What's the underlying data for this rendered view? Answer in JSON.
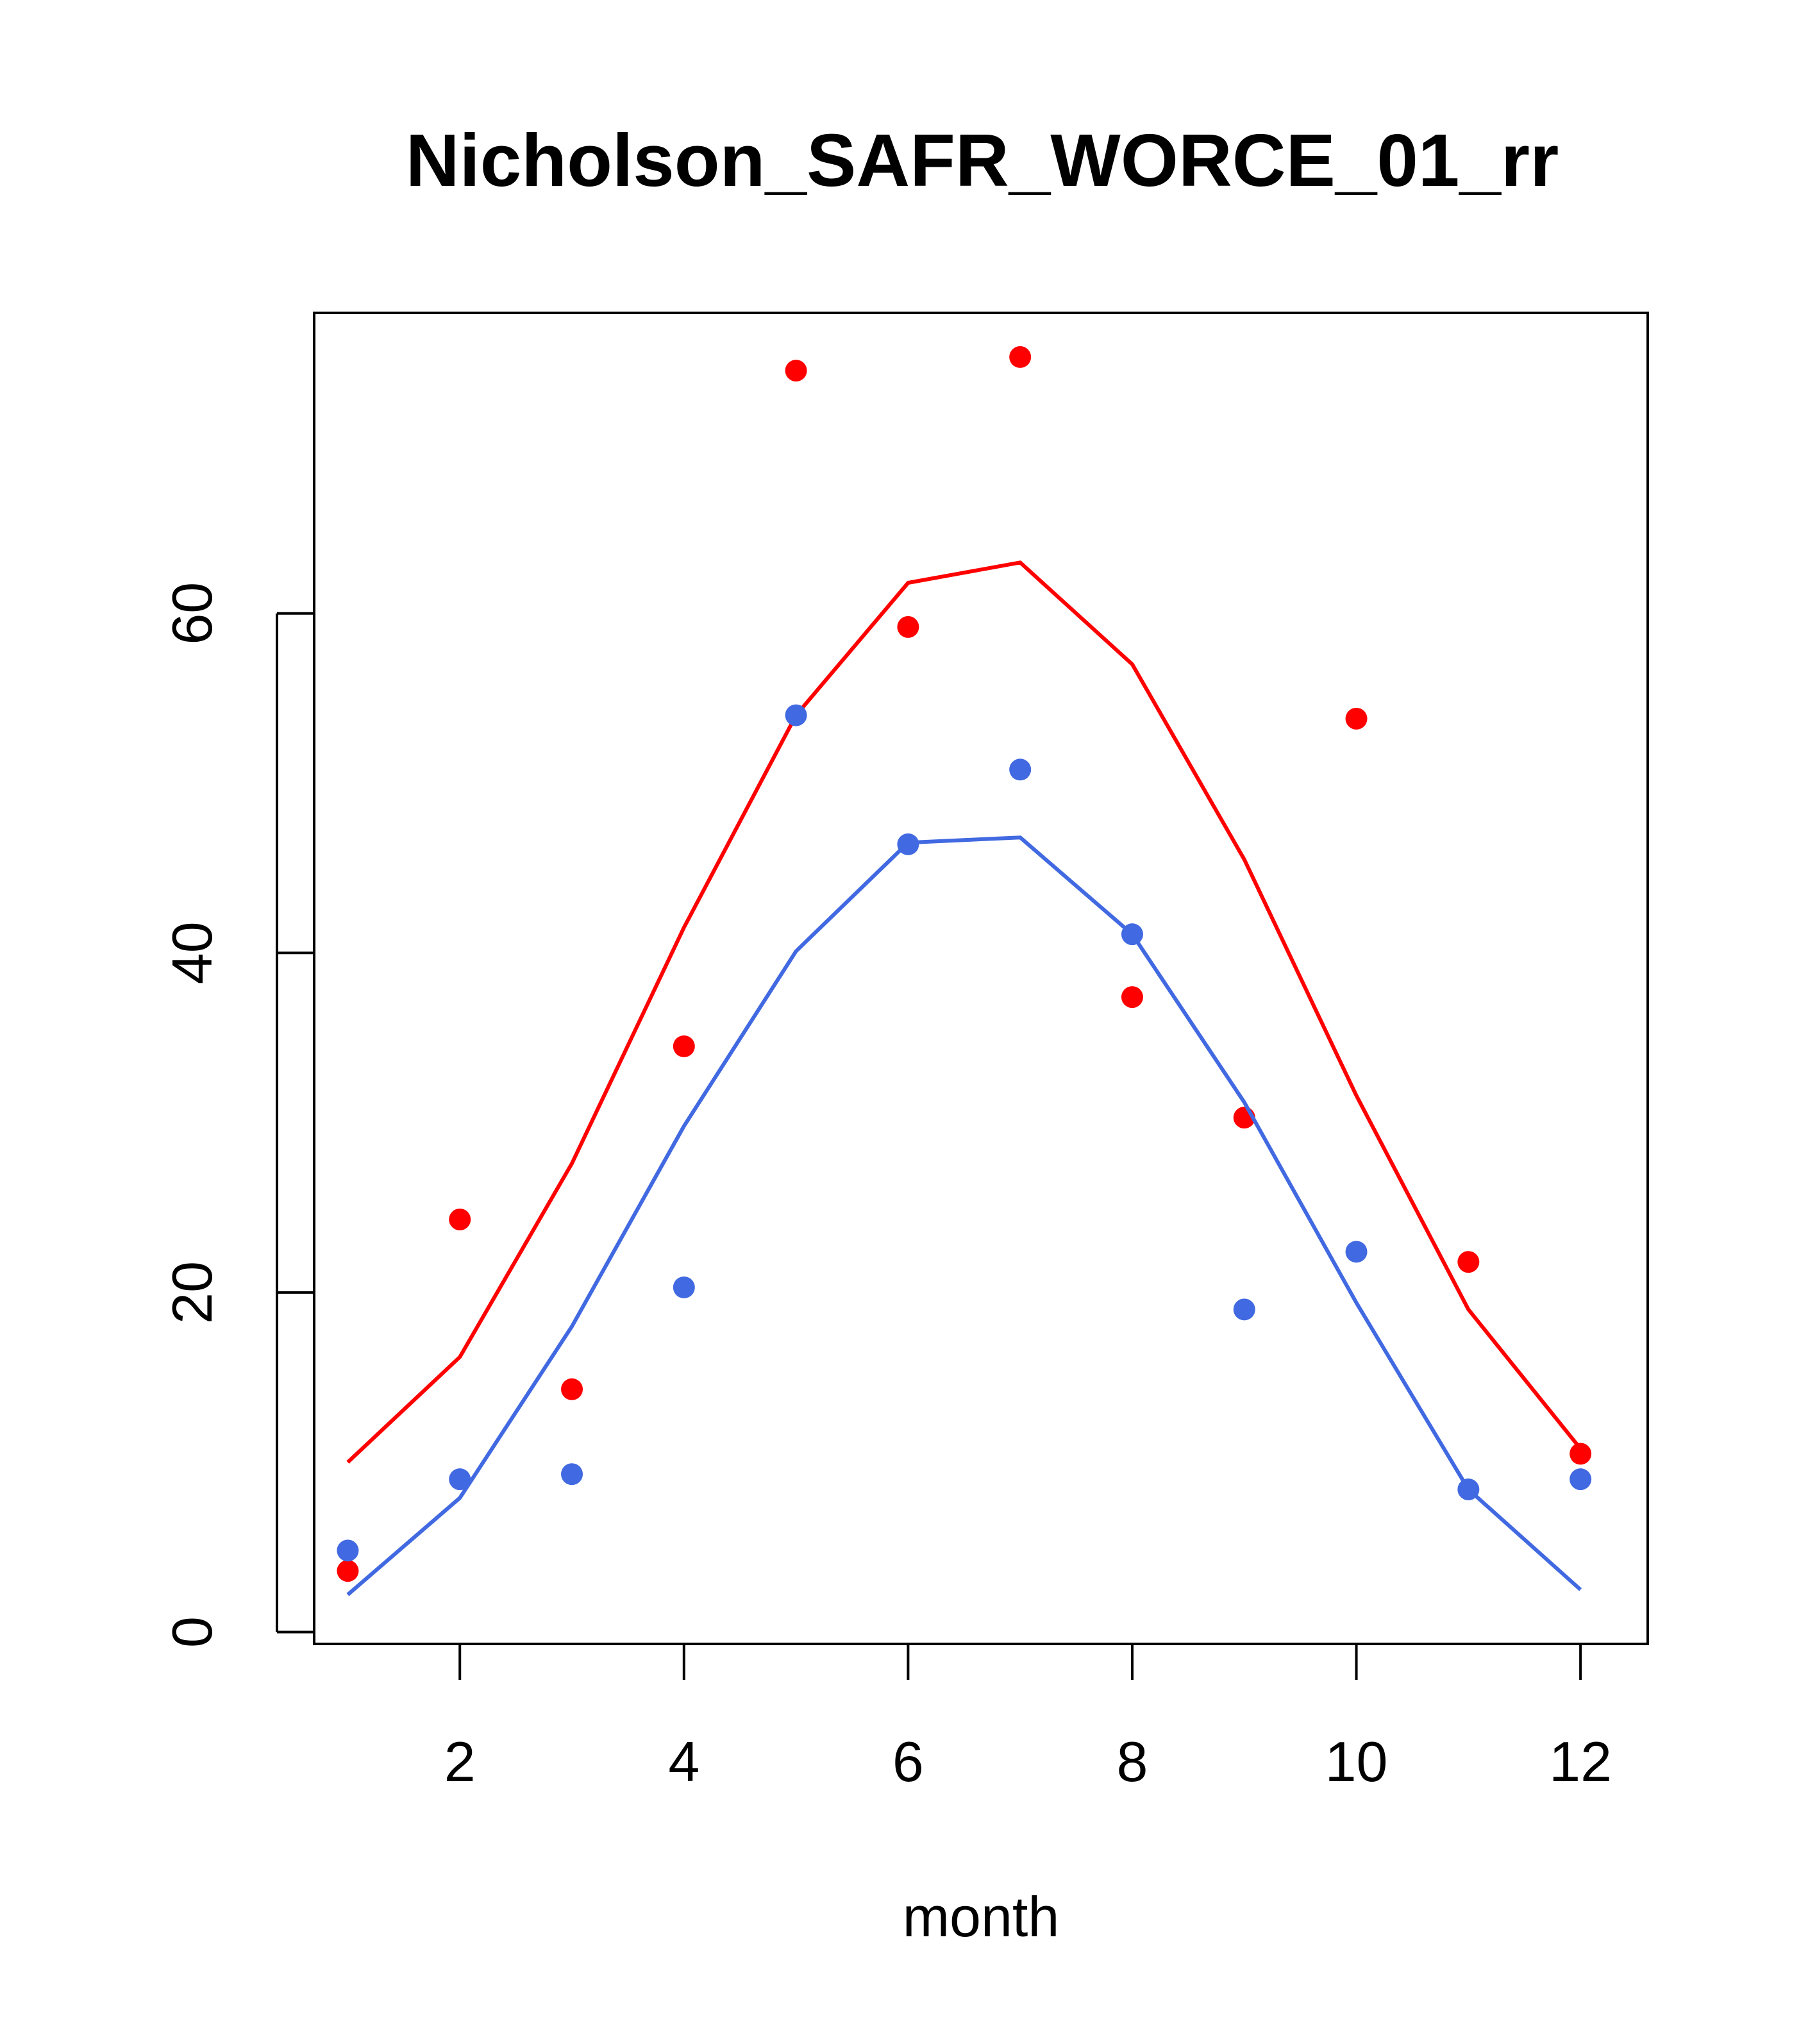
{
  "chart_data": {
    "type": "scatter",
    "title": "Nicholson_SAFR_WORCE_01_rr",
    "xlabel": "month",
    "ylabel": "",
    "xlim": [
      0.7,
      12.6
    ],
    "ylim": [
      -0.7,
      77.7
    ],
    "x_ticks": [
      2,
      4,
      6,
      8,
      10,
      12
    ],
    "y_ticks": [
      0,
      20,
      40,
      60
    ],
    "grid": false,
    "x": [
      1,
      2,
      3,
      4,
      5,
      6,
      7,
      8,
      9,
      10,
      11,
      12
    ],
    "series": [
      {
        "color": "#ff0000",
        "points": [
          3.6,
          24.3,
          14.3,
          34.5,
          74.3,
          59.2,
          75.1,
          37.4,
          30.3,
          53.8,
          21.8,
          10.5
        ],
        "line": [
          10.0,
          16.2,
          27.6,
          41.5,
          54.0,
          61.8,
          63.0,
          57.0,
          45.5,
          31.6,
          19.0,
          10.8
        ]
      },
      {
        "color": "#4169e1",
        "points": [
          4.8,
          9.0,
          9.3,
          20.3,
          54.0,
          46.4,
          50.8,
          41.1,
          19.0,
          22.4,
          8.4,
          9.0
        ],
        "line": [
          2.2,
          7.9,
          18.0,
          29.8,
          40.1,
          46.5,
          46.8,
          41.1,
          31.2,
          19.4,
          8.4,
          2.5
        ]
      }
    ]
  }
}
